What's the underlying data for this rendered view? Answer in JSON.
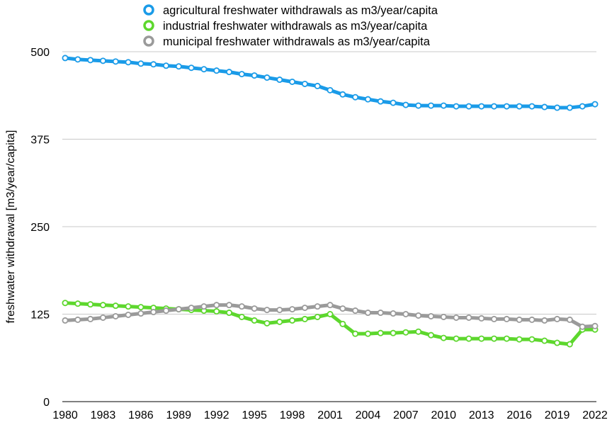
{
  "chart_data": {
    "type": "line",
    "ylabel": "freshwater withdrawal [m3/year/capita]",
    "xlabel": "",
    "ylim": [
      0,
      500
    ],
    "yticks": [
      0,
      125,
      250,
      375,
      500
    ],
    "xtick_labels": [
      "1980",
      "1983",
      "1986",
      "1989",
      "1992",
      "1995",
      "1998",
      "2001",
      "2004",
      "2007",
      "2010",
      "2013",
      "2016",
      "2019",
      "2022"
    ],
    "grid": true,
    "legend_position": "top-center",
    "x": [
      1980,
      1981,
      1982,
      1983,
      1984,
      1985,
      1986,
      1987,
      1988,
      1989,
      1990,
      1991,
      1992,
      1993,
      1994,
      1995,
      1996,
      1997,
      1998,
      1999,
      2000,
      2001,
      2002,
      2003,
      2004,
      2005,
      2006,
      2007,
      2008,
      2009,
      2010,
      2011,
      2012,
      2013,
      2014,
      2015,
      2016,
      2017,
      2018,
      2019,
      2020,
      2021,
      2022
    ],
    "series": [
      {
        "name": "agricultural freshwater withdrawals as m3/year/capita",
        "color": "#1a9be8",
        "values": [
          491,
          489,
          488,
          487,
          486,
          485,
          483,
          482,
          480,
          479,
          477,
          475,
          473,
          471,
          468,
          466,
          463,
          460,
          457,
          454,
          451,
          445,
          439,
          435,
          432,
          429,
          427,
          424,
          423,
          423,
          423,
          422,
          422,
          422,
          422,
          422,
          422,
          422,
          421,
          420,
          420,
          422,
          425
        ]
      },
      {
        "name": "industrial freshwater withdrawals as m3/year/capita",
        "color": "#5dd72d",
        "values": [
          141,
          140,
          139,
          138,
          137,
          136,
          135,
          134,
          133,
          132,
          131,
          130,
          129,
          127,
          121,
          116,
          112,
          114,
          116,
          118,
          121,
          125,
          111,
          97,
          97,
          98,
          98,
          99,
          100,
          95,
          91,
          90,
          90,
          90,
          90,
          90,
          89,
          89,
          87,
          84,
          82,
          103,
          103
        ]
      },
      {
        "name": "municipal freshwater withdrawals as  m3/year/capita",
        "color": "#9a9a9a",
        "values": [
          116,
          117,
          118,
          120,
          122,
          124,
          126,
          128,
          130,
          132,
          134,
          136,
          138,
          138,
          136,
          133,
          131,
          131,
          132,
          134,
          136,
          138,
          133,
          130,
          127,
          127,
          126,
          125,
          123,
          122,
          121,
          120,
          120,
          119,
          118,
          118,
          117,
          117,
          116,
          118,
          117,
          107,
          108
        ]
      }
    ]
  }
}
